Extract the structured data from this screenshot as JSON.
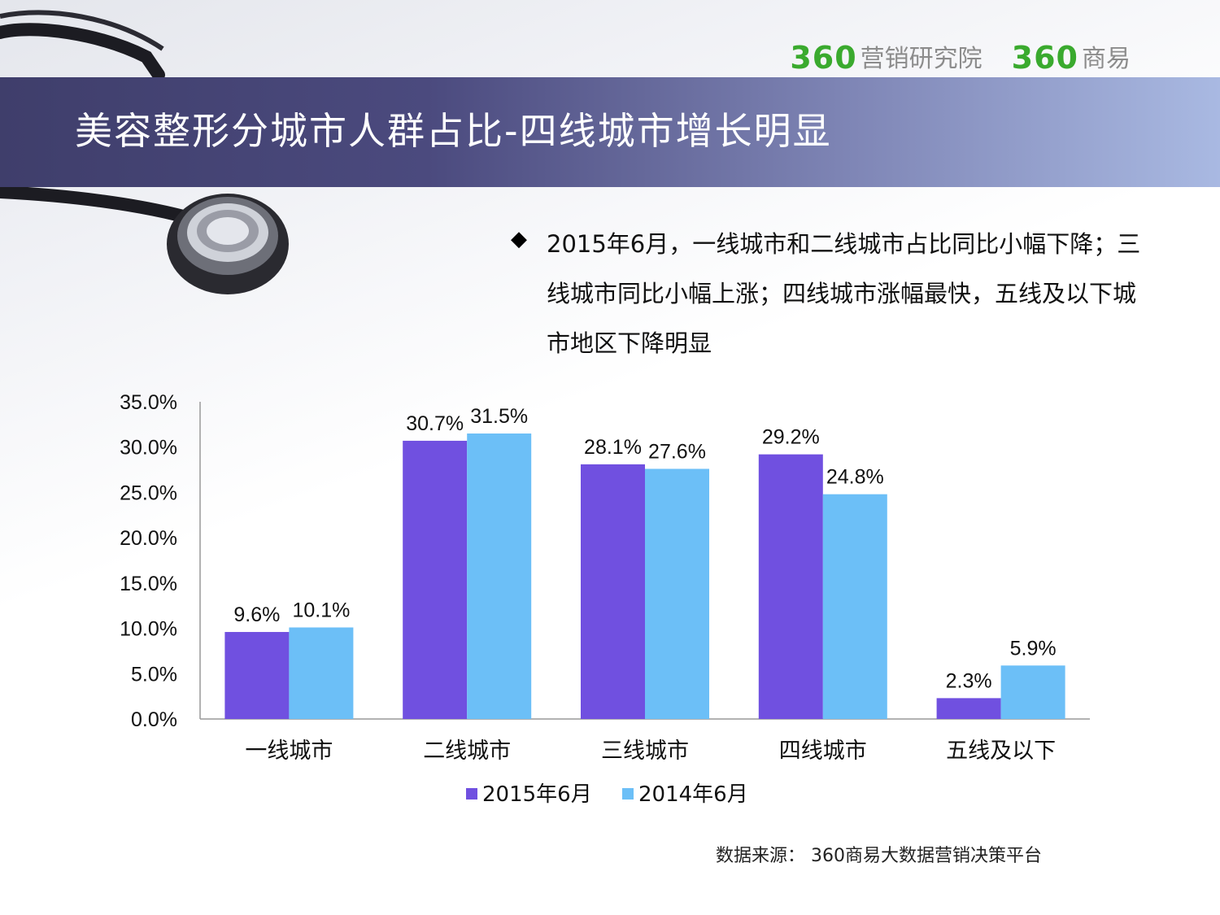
{
  "logos": {
    "left_num": "360",
    "left_text": "营销研究院",
    "right_num": "360",
    "right_text": "商易"
  },
  "title": "美容整形分城市人群占比-四线城市增长明显",
  "bullet": "2015年6月，一线城市和二线城市占比同比小幅下降；三线城市同比小幅上涨；四线城市涨幅最快，五线及以下城市地区下降明显",
  "bullet_symbol": "◆",
  "source": "数据来源：  360商易大数据营销决策平台",
  "colors": {
    "series_2015": "#7050e0",
    "series_2014": "#6cbff7",
    "logo_green": "#3aaa2e"
  },
  "chart_data": {
    "type": "bar",
    "categories": [
      "一线城市",
      "二线城市",
      "三线城市",
      "四线城市",
      "五线及以下"
    ],
    "series": [
      {
        "name": "2015年6月",
        "values": [
          9.6,
          30.7,
          28.1,
          29.2,
          2.3
        ],
        "labels": [
          "9.6%",
          "30.7%",
          "28.1%",
          "29.2%",
          "2.3%"
        ]
      },
      {
        "name": "2014年6月",
        "values": [
          10.1,
          31.5,
          27.6,
          24.8,
          5.9
        ],
        "labels": [
          "10.1%",
          "31.5%",
          "27.6%",
          "24.8%",
          "5.9%"
        ]
      }
    ],
    "yticks": [
      "0.0%",
      "5.0%",
      "10.0%",
      "15.0%",
      "20.0%",
      "25.0%",
      "30.0%",
      "35.0%"
    ],
    "ylim": [
      0,
      35
    ],
    "legend_position": "bottom",
    "grid": false
  }
}
